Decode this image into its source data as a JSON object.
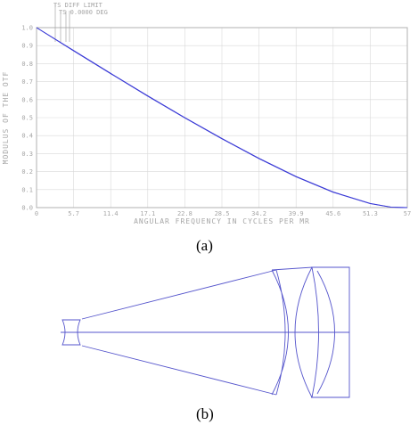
{
  "chart_data": {
    "type": "line",
    "legend": [
      "TS DIFF  LIMIT",
      "TS 0.0000 DEG"
    ],
    "xlabel": "ANGULAR FREQUENCY IN CYCLES PER MR",
    "ylabel": "MODULUS OF THE OTF",
    "xlim": [
      0,
      57
    ],
    "ylim": [
      0,
      1
    ],
    "x_ticks": [
      "0",
      "5.7",
      "11.4",
      "17.1",
      "22.8",
      "28.5",
      "34.2",
      "39.9",
      "45.6",
      "51.3",
      "57"
    ],
    "y_ticks": [
      "0.0",
      "0.1",
      "0.2",
      "0.3",
      "0.4",
      "0.5",
      "0.6",
      "0.7",
      "0.8",
      "0.9",
      "1.0"
    ],
    "grid": true,
    "series": [
      {
        "name": "TS DIFF  LIMIT",
        "color": "#3a3ad6",
        "x": [
          0,
          5.7,
          11.4,
          17.1,
          22.8,
          28.5,
          34.2,
          39.9,
          45.6,
          51.3,
          54.5,
          57
        ],
        "y": [
          1.0,
          0.873,
          0.746,
          0.621,
          0.5,
          0.384,
          0.274,
          0.173,
          0.087,
          0.023,
          0.003,
          0.0
        ]
      },
      {
        "name": "TS 0.0000 DEG",
        "color": "#3a3ad6",
        "x": [
          0,
          5.7,
          11.4,
          17.1,
          22.8,
          28.5,
          34.2,
          39.9,
          45.6,
          51.3,
          54.5,
          57
        ],
        "y": [
          1.0,
          0.871,
          0.744,
          0.619,
          0.498,
          0.382,
          0.272,
          0.171,
          0.085,
          0.022,
          0.002,
          0.0
        ]
      }
    ]
  },
  "captions": {
    "a": "(a)",
    "b": "(b)"
  }
}
